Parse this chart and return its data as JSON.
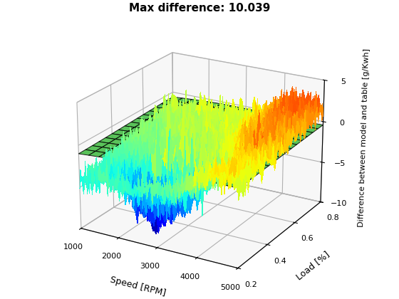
{
  "title": "Max difference: 10.039",
  "xlabel": "Speed [RPM]",
  "ylabel": "Load [%]",
  "zlabel": "Difference between model and table [g/Kwh]",
  "speed_min": 1000,
  "speed_max": 5000,
  "load_min": 0.2,
  "load_max": 0.8,
  "zlim": [
    -10,
    5
  ],
  "zticks": [
    -10,
    -5,
    0,
    5
  ],
  "speed_ticks": [
    1000,
    2000,
    3000,
    4000,
    5000
  ],
  "load_ticks": [
    0.2,
    0.4,
    0.6,
    0.8
  ],
  "flat_surface_color": "#44bb44",
  "background_color": "#ffffff",
  "colormap": "jet",
  "elev": 22,
  "azim": -60
}
